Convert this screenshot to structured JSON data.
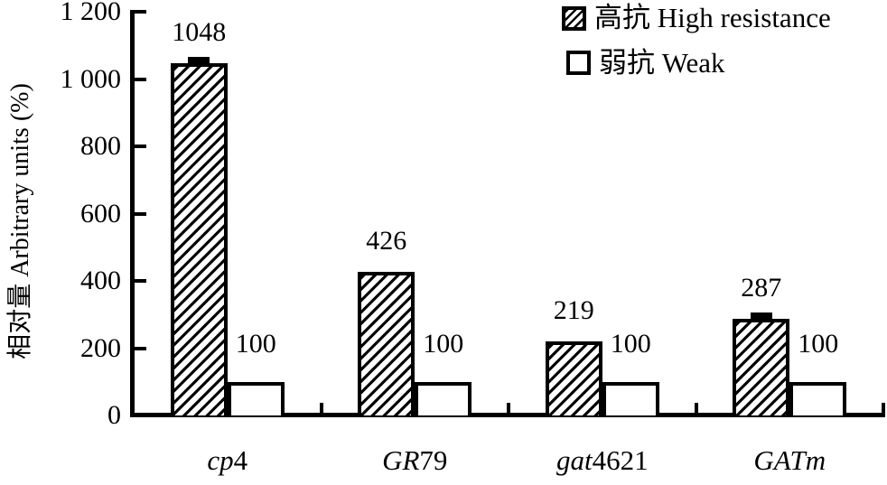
{
  "chart_data": {
    "type": "bar",
    "title": "",
    "xlabel": "",
    "ylabel": "相对量 Arbitrary units (%)",
    "ylim": [
      0,
      1200
    ],
    "grid": false,
    "yticks": [
      {
        "value": 0,
        "label": "0"
      },
      {
        "value": 200,
        "label": "200"
      },
      {
        "value": 400,
        "label": "400"
      },
      {
        "value": 600,
        "label": "600"
      },
      {
        "value": 800,
        "label": "800"
      },
      {
        "value": 1000,
        "label": "1 000"
      },
      {
        "value": 1200,
        "label": "1 200"
      }
    ],
    "categories": [
      {
        "italic": "cp",
        "roman": "4"
      },
      {
        "italic": "GR",
        "roman": "79"
      },
      {
        "italic": "gat",
        "roman": "4621"
      },
      {
        "italic": "GATm",
        "roman": ""
      }
    ],
    "series": [
      {
        "name": "高抗 High resistance",
        "pattern": "hatched",
        "values": [
          1048,
          426,
          219,
          287
        ],
        "value_labels": [
          "1048",
          "426",
          "219",
          "287"
        ],
        "error_caps": [
          true,
          false,
          false,
          true
        ]
      },
      {
        "name": "弱抗 Weak",
        "pattern": "white",
        "values": [
          100,
          100,
          100,
          100
        ],
        "value_labels": [
          "100",
          "100",
          "100",
          "100"
        ],
        "error_caps": [
          false,
          false,
          false,
          false
        ]
      }
    ],
    "legend": {
      "position": "top-right",
      "items": [
        {
          "label": "高抗 High resistance",
          "pattern": "hatched"
        },
        {
          "label": "弱抗 Weak",
          "pattern": "white"
        }
      ]
    },
    "colors": {
      "foreground": "#000000",
      "background": "#ffffff"
    }
  }
}
